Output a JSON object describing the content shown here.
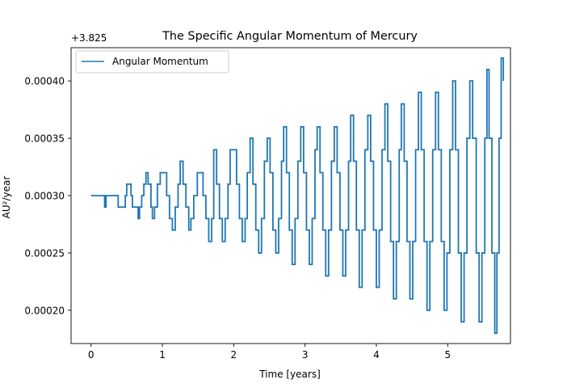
{
  "chart_data": {
    "type": "line",
    "title": "The Specific Angular Momentum of Mercury",
    "xlabel": "Time [years]",
    "ylabel": "AU²/year",
    "offset_label": "+3.825",
    "xlim": [
      -0.28,
      5.88
    ],
    "ylim": [
      0.000171,
      0.000429
    ],
    "x_ticks": [
      0,
      1,
      2,
      3,
      4,
      5
    ],
    "x_tick_labels": [
      "0",
      "1",
      "2",
      "3",
      "4",
      "5"
    ],
    "y_ticks": [
      0.0002,
      0.00025,
      0.0003,
      0.00035,
      0.0004
    ],
    "y_tick_labels": [
      "0.00020",
      "0.00025",
      "0.00030",
      "0.00035",
      "0.00040"
    ],
    "legend": {
      "position": "top-left",
      "entries": [
        "Angular Momentum"
      ]
    },
    "grid": false,
    "series": [
      {
        "name": "Angular Momentum",
        "color": "#1f77b4",
        "style": "steps",
        "points": [
          [
            0.0,
            0.0003
          ],
          [
            0.17,
            0.0003
          ],
          [
            0.19,
            0.00029
          ],
          [
            0.21,
            0.0003
          ],
          [
            0.36,
            0.0003
          ],
          [
            0.38,
            0.00029
          ],
          [
            0.46,
            0.00029
          ],
          [
            0.48,
            0.0003
          ],
          [
            0.5,
            0.00031
          ],
          [
            0.53,
            0.00031
          ],
          [
            0.56,
            0.0003
          ],
          [
            0.58,
            0.00029
          ],
          [
            0.64,
            0.00029
          ],
          [
            0.66,
            0.00028
          ],
          [
            0.68,
            0.00029
          ],
          [
            0.71,
            0.0003
          ],
          [
            0.74,
            0.00031
          ],
          [
            0.77,
            0.00032
          ],
          [
            0.8,
            0.00031
          ],
          [
            0.84,
            0.00029
          ],
          [
            0.86,
            0.00028
          ],
          [
            0.89,
            0.00029
          ],
          [
            0.93,
            0.00031
          ],
          [
            0.97,
            0.00032
          ],
          [
            1.02,
            0.00032
          ],
          [
            1.06,
            0.0003
          ],
          [
            1.1,
            0.00028
          ],
          [
            1.14,
            0.00027
          ],
          [
            1.18,
            0.00029
          ],
          [
            1.22,
            0.00031
          ],
          [
            1.25,
            0.00033
          ],
          [
            1.29,
            0.00031
          ],
          [
            1.33,
            0.00029
          ],
          [
            1.37,
            0.00027
          ],
          [
            1.4,
            0.00028
          ],
          [
            1.44,
            0.0003
          ],
          [
            1.49,
            0.00032
          ],
          [
            1.53,
            0.00032
          ],
          [
            1.57,
            0.0003
          ],
          [
            1.61,
            0.00028
          ],
          [
            1.65,
            0.00026
          ],
          [
            1.69,
            0.00028
          ],
          [
            1.72,
            0.00034
          ],
          [
            1.76,
            0.00031
          ],
          [
            1.8,
            0.00028
          ],
          [
            1.84,
            0.00026
          ],
          [
            1.88,
            0.00028
          ],
          [
            1.92,
            0.00031
          ],
          [
            1.95,
            0.00034
          ],
          [
            2.0,
            0.00034
          ],
          [
            2.04,
            0.00031
          ],
          [
            2.08,
            0.00028
          ],
          [
            2.12,
            0.00026
          ],
          [
            2.16,
            0.00028
          ],
          [
            2.19,
            0.00032
          ],
          [
            2.23,
            0.00035
          ],
          [
            2.27,
            0.00031
          ],
          [
            2.31,
            0.00027
          ],
          [
            2.35,
            0.00025
          ],
          [
            2.39,
            0.00028
          ],
          [
            2.43,
            0.00033
          ],
          [
            2.47,
            0.00035
          ],
          [
            2.51,
            0.00032
          ],
          [
            2.55,
            0.00027
          ],
          [
            2.59,
            0.00025
          ],
          [
            2.63,
            0.00028
          ],
          [
            2.67,
            0.00033
          ],
          [
            2.7,
            0.00036
          ],
          [
            2.74,
            0.00032
          ],
          [
            2.78,
            0.00027
          ],
          [
            2.82,
            0.00024
          ],
          [
            2.86,
            0.00028
          ],
          [
            2.9,
            0.00033
          ],
          [
            2.94,
            0.00036
          ],
          [
            2.98,
            0.00032
          ],
          [
            3.02,
            0.00027
          ],
          [
            3.06,
            0.00024
          ],
          [
            3.1,
            0.00028
          ],
          [
            3.14,
            0.00034
          ],
          [
            3.17,
            0.00036
          ],
          [
            3.21,
            0.00032
          ],
          [
            3.25,
            0.00027
          ],
          [
            3.29,
            0.00023
          ],
          [
            3.33,
            0.00027
          ],
          [
            3.37,
            0.00033
          ],
          [
            3.41,
            0.00036
          ],
          [
            3.45,
            0.00032
          ],
          [
            3.49,
            0.00027
          ],
          [
            3.53,
            0.00023
          ],
          [
            3.57,
            0.00027
          ],
          [
            3.61,
            0.00033
          ],
          [
            3.64,
            0.00037
          ],
          [
            3.68,
            0.00033
          ],
          [
            3.72,
            0.00027
          ],
          [
            3.76,
            0.00022
          ],
          [
            3.8,
            0.00027
          ],
          [
            3.84,
            0.00034
          ],
          [
            3.88,
            0.00037
          ],
          [
            3.92,
            0.00033
          ],
          [
            3.96,
            0.00027
          ],
          [
            4.0,
            0.00022
          ],
          [
            4.04,
            0.00027
          ],
          [
            4.08,
            0.00034
          ],
          [
            4.12,
            0.00038
          ],
          [
            4.16,
            0.00033
          ],
          [
            4.2,
            0.00026
          ],
          [
            4.24,
            0.00021
          ],
          [
            4.28,
            0.00026
          ],
          [
            4.32,
            0.00034
          ],
          [
            4.35,
            0.00038
          ],
          [
            4.39,
            0.00033
          ],
          [
            4.43,
            0.00026
          ],
          [
            4.47,
            0.00021
          ],
          [
            4.51,
            0.00026
          ],
          [
            4.55,
            0.00034
          ],
          [
            4.59,
            0.00039
          ],
          [
            4.63,
            0.00034
          ],
          [
            4.67,
            0.00026
          ],
          [
            4.71,
            0.0002
          ],
          [
            4.75,
            0.00026
          ],
          [
            4.79,
            0.00034
          ],
          [
            4.83,
            0.00039
          ],
          [
            4.87,
            0.00034
          ],
          [
            4.91,
            0.00026
          ],
          [
            4.95,
            0.0002
          ],
          [
            4.99,
            0.00025
          ],
          [
            5.03,
            0.00034
          ],
          [
            5.07,
            0.0004
          ],
          [
            5.11,
            0.00034
          ],
          [
            5.15,
            0.00025
          ],
          [
            5.19,
            0.00019
          ],
          [
            5.23,
            0.00025
          ],
          [
            5.27,
            0.00035
          ],
          [
            5.31,
            0.0004
          ],
          [
            5.35,
            0.00035
          ],
          [
            5.4,
            0.00025
          ],
          [
            5.44,
            0.00019
          ],
          [
            5.48,
            0.00025
          ],
          [
            5.52,
            0.00035
          ],
          [
            5.55,
            0.00041
          ],
          [
            5.58,
            0.00035
          ],
          [
            5.62,
            0.00025
          ],
          [
            5.66,
            0.00018
          ],
          [
            5.69,
            0.00025
          ],
          [
            5.72,
            0.00035
          ],
          [
            5.75,
            0.00042
          ],
          [
            5.78,
            0.0004
          ]
        ]
      }
    ]
  }
}
